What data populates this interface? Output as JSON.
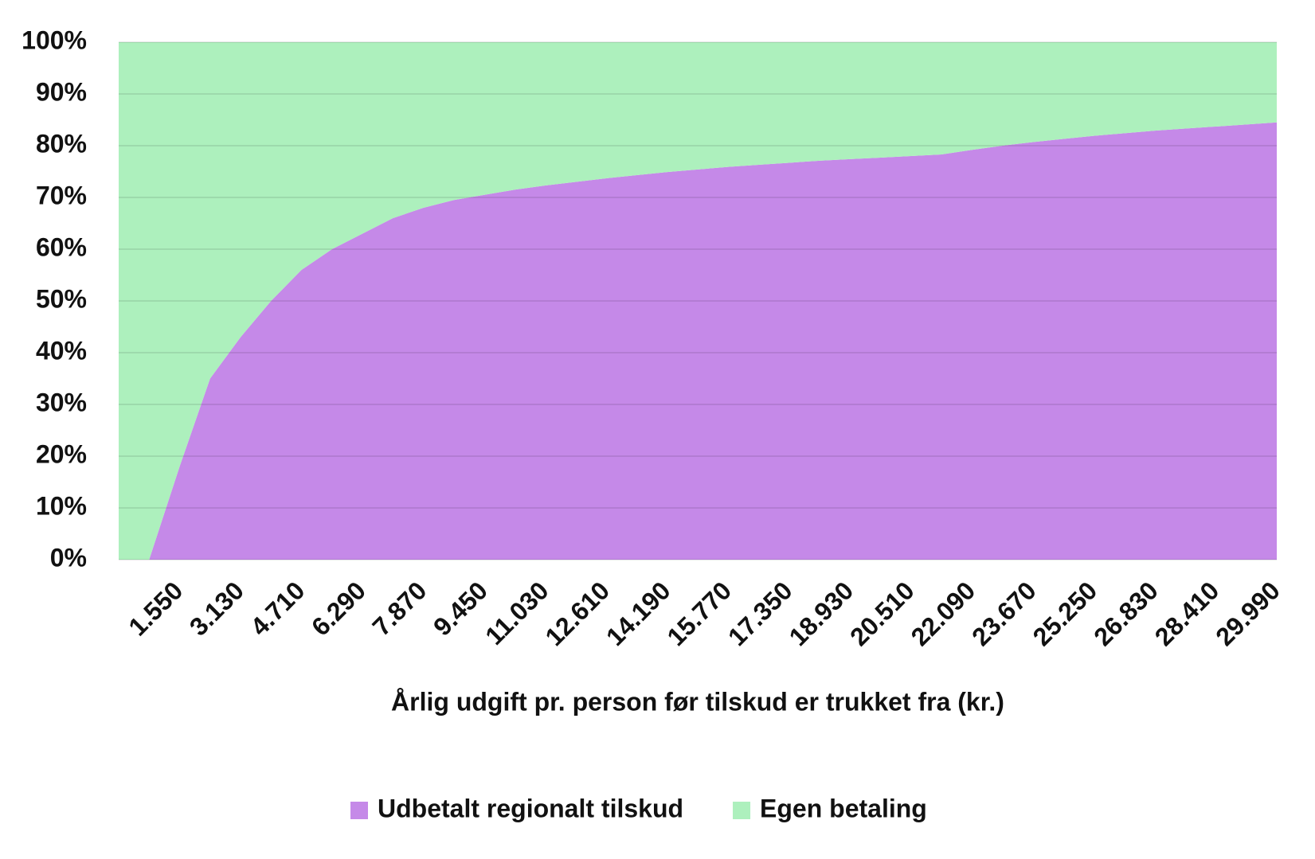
{
  "chart_data": {
    "type": "stacked-area",
    "x_label": "Årlig udgift pr. person før tilskud er trukket fra (kr.)",
    "categories": [
      null,
      null,
      "1.550",
      null,
      "3.130",
      null,
      "4.710",
      null,
      "6.290",
      null,
      "7.870",
      null,
      "9.450",
      null,
      "11.030",
      null,
      "12.610",
      null,
      "14.190",
      null,
      "15.770",
      null,
      "17.350",
      null,
      "18.930",
      null,
      "20.510",
      null,
      "22.090",
      null,
      "23.670",
      null,
      "25.250",
      null,
      "26.830",
      null,
      "28.410",
      null,
      "29.990"
    ],
    "series": [
      {
        "name": "Udbetalt regionalt tilskud",
        "color": "#c589e8",
        "values": [
          0,
          0,
          18,
          35,
          43,
          50,
          56,
          60,
          63,
          66,
          68,
          69.5,
          70.5,
          71.5,
          72.3,
          73,
          73.7,
          74.3,
          74.9,
          75.4,
          75.9,
          76.3,
          76.7,
          77.1,
          77.4,
          77.7,
          78,
          78.3,
          79.2,
          80,
          80.7,
          81.3,
          81.9,
          82.4,
          82.9,
          83.3,
          83.7,
          84.1,
          84.5
        ]
      },
      {
        "name": "Egen betaling",
        "color": "#adf0bd",
        "values": [
          100,
          100,
          82,
          65,
          57,
          50,
          44,
          40,
          37,
          34,
          32,
          30.5,
          29.5,
          28.5,
          27.7,
          27,
          26.3,
          25.7,
          25.1,
          24.6,
          24.1,
          23.7,
          23.3,
          22.9,
          22.6,
          22.3,
          22,
          21.7,
          20.8,
          20,
          19.3,
          18.7,
          18.1,
          17.6,
          17.1,
          16.7,
          16.3,
          15.9,
          15.5
        ]
      }
    ],
    "ylim": [
      0,
      100
    ],
    "yticks": [
      {
        "value": 0,
        "label": "0%"
      },
      {
        "value": 10,
        "label": "10%"
      },
      {
        "value": 20,
        "label": "20%"
      },
      {
        "value": 30,
        "label": "30%"
      },
      {
        "value": 40,
        "label": "40%"
      },
      {
        "value": 50,
        "label": "50%"
      },
      {
        "value": 60,
        "label": "60%"
      },
      {
        "value": 70,
        "label": "70%"
      },
      {
        "value": 80,
        "label": "80%"
      },
      {
        "value": 90,
        "label": "90%"
      },
      {
        "value": 100,
        "label": "100%"
      }
    ],
    "grid": true,
    "legend": "bottom"
  }
}
